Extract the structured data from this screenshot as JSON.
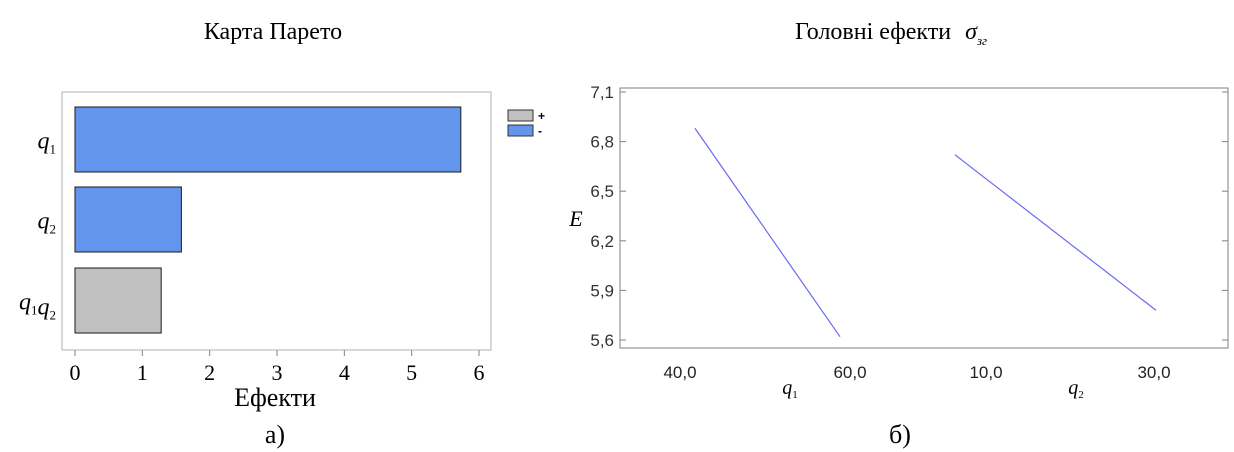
{
  "chart_data": [
    {
      "type": "bar",
      "orientation": "horizontal",
      "title": "Карта Парето",
      "xlabel": "Ефекти",
      "panel_label": "а)",
      "xlim": [
        0,
        6
      ],
      "xticks": [
        "0",
        "1",
        "2",
        "3",
        "4",
        "5",
        "6"
      ],
      "categories": [
        {
          "base": "q",
          "sub": "1"
        },
        {
          "base": "q",
          "sub": "2"
        },
        {
          "base": "q",
          "sub": "1",
          "base2": "q",
          "sub2": "2"
        }
      ],
      "values": [
        5.73,
        1.58,
        1.28
      ],
      "signs": [
        "-",
        "-",
        "+"
      ],
      "legend": {
        "position": "right",
        "items": [
          {
            "label": "+",
            "color": "#c0c0c0"
          },
          {
            "label": "-",
            "color": "#6495ed"
          }
        ]
      },
      "colors": {
        "positive": "#c0c0c0",
        "negative": "#6495ed"
      }
    },
    {
      "type": "line",
      "title": "Головні ефекти",
      "title_symbol": {
        "base": "σ",
        "sub": "зг"
      },
      "ylabel": "E",
      "panel_label": "б)",
      "ylim": [
        5.6,
        7.1
      ],
      "yticks": [
        "5,6",
        "5,9",
        "6,2",
        "6,5",
        "6,8",
        "7,1"
      ],
      "factors": [
        {
          "name": {
            "base": "q",
            "sub": "1"
          },
          "low_label": "40,0",
          "high_label": "60,0",
          "low_value": 6.88,
          "high_value": 5.62
        },
        {
          "name": {
            "base": "q",
            "sub": "2"
          },
          "low_label": "10,0",
          "high_label": "30,0",
          "low_value": 6.72,
          "high_value": 5.78
        }
      ],
      "line_color": "#6a6af0"
    }
  ]
}
